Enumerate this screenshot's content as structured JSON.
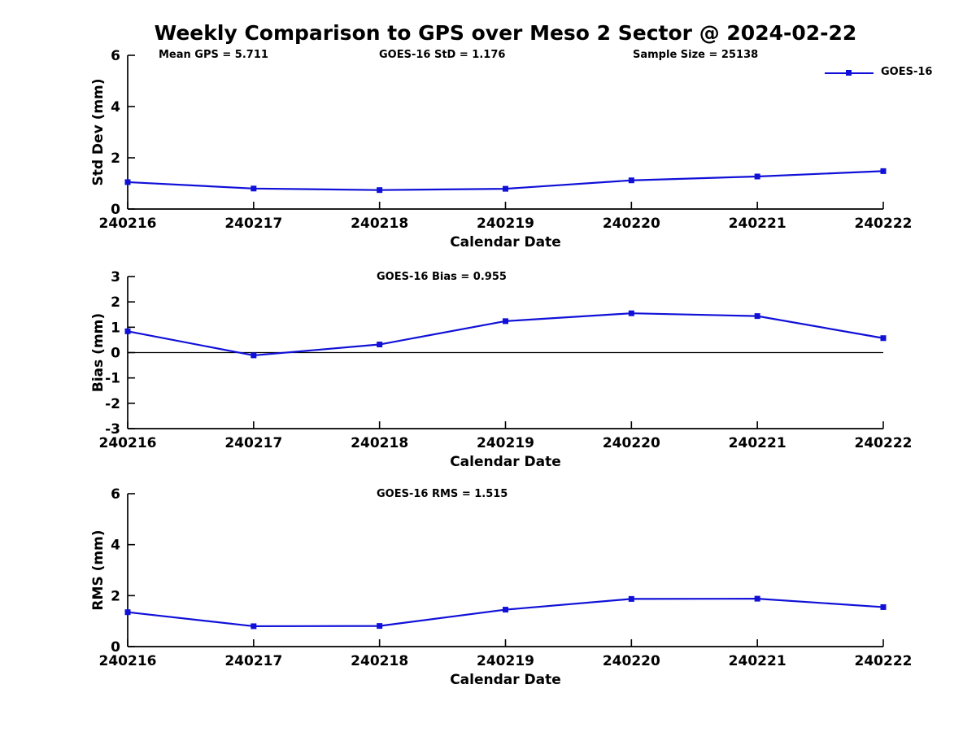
{
  "header": {
    "title": "Weekly Comparison to GPS over Meso 2 Sector @ 2024-02-22",
    "stats": [
      {
        "id": "mean-gps",
        "label": "Mean GPS = 5.711"
      },
      {
        "id": "goes16-std",
        "label": "GOES-16 StD = 1.176"
      },
      {
        "id": "sample-size",
        "label": "Sample Size = 25138"
      }
    ]
  },
  "legend": {
    "label": "GOES-16",
    "position": "top-right"
  },
  "colors": {
    "line": "#1010d8",
    "axis": "#000000",
    "text": "#000000",
    "background": "#ffffff"
  },
  "chart_data": [
    {
      "type": "line",
      "panel": "std-dev",
      "ylabel": "Std Dev (mm)",
      "xlabel": "Calendar Date",
      "annotation": "",
      "categories": [
        "240216",
        "240217",
        "240218",
        "240219",
        "240220",
        "240221",
        "240222"
      ],
      "series": [
        {
          "name": "GOES-16",
          "values": [
            1.05,
            0.8,
            0.74,
            0.79,
            1.12,
            1.27,
            1.48
          ]
        }
      ],
      "ylim": [
        0,
        6
      ],
      "yticks": [
        0,
        2,
        4,
        6
      ],
      "zero_line": false,
      "grid": false,
      "marker": "square"
    },
    {
      "type": "line",
      "panel": "bias",
      "ylabel": "Bias (mm)",
      "xlabel": "Calendar Date",
      "annotation": "GOES-16 Bias  = 0.955",
      "categories": [
        "240216",
        "240217",
        "240218",
        "240219",
        "240220",
        "240221",
        "240222"
      ],
      "series": [
        {
          "name": "GOES-16",
          "values": [
            0.84,
            -0.11,
            0.32,
            1.24,
            1.55,
            1.44,
            0.57
          ]
        }
      ],
      "ylim": [
        -3,
        3
      ],
      "yticks": [
        -3,
        -2,
        -1,
        0,
        1,
        2,
        3
      ],
      "zero_line": true,
      "grid": false,
      "marker": "square"
    },
    {
      "type": "line",
      "panel": "rms",
      "ylabel": "RMS (mm)",
      "xlabel": "Calendar Date",
      "annotation": "GOES-16 RMS = 1.515",
      "categories": [
        "240216",
        "240217",
        "240218",
        "240219",
        "240220",
        "240221",
        "240222"
      ],
      "series": [
        {
          "name": "GOES-16",
          "values": [
            1.35,
            0.8,
            0.81,
            1.45,
            1.87,
            1.88,
            1.55
          ]
        }
      ],
      "ylim": [
        0,
        6
      ],
      "yticks": [
        0,
        2,
        4,
        6
      ],
      "zero_line": false,
      "grid": false,
      "marker": "square"
    }
  ]
}
